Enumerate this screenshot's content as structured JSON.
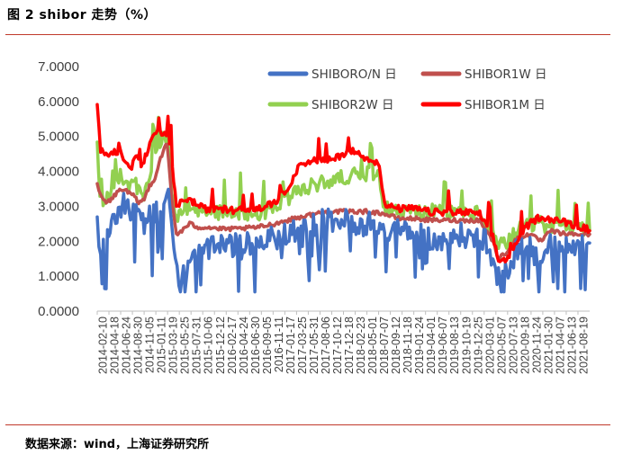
{
  "figure": {
    "title": "图 2 shibor 走势（%）",
    "source": "数据来源：wind，上海证券研究所"
  },
  "chart_data": {
    "type": "line",
    "title": "",
    "xlabel": "",
    "ylabel": "",
    "ylim": [
      0,
      7
    ],
    "yticks": [
      "0.0000",
      "1.0000",
      "2.0000",
      "3.0000",
      "4.0000",
      "5.0000",
      "6.0000",
      "7.0000"
    ],
    "grid": false,
    "legend_position": "top-right",
    "x_tick_labels": [
      "2014-02-10",
      "2014-04-18",
      "2014-06-24",
      "2014-08-30",
      "2014-11-05",
      "2015-01-11",
      "2015-03-19",
      "2015-05-25",
      "2015-07-31",
      "2015-10-06",
      "2015-12-12",
      "2016-02-17",
      "2016-04-24",
      "2016-06-30",
      "2016-09-05",
      "2016-11-11",
      "2017-01-17",
      "2017-03-25",
      "2017-05-31",
      "2017-08-06",
      "2017-10-12",
      "2017-12-18",
      "2018-02-23",
      "2018-05-01",
      "2018-07-07",
      "2018-09-12",
      "2018-11-18",
      "2019-01-24",
      "2019-04-01",
      "2019-06-07",
      "2019-08-13",
      "2019-10-19",
      "2019-12-25",
      "2020-03-01",
      "2020-05-07",
      "2020-07-13",
      "2020-09-18",
      "2020-11-24",
      "2021-01-30",
      "2021-04-07",
      "2021-06-13",
      "2021-08-19"
    ],
    "x_start": "2014-02-10",
    "x_end": "2021-09-10",
    "series": [
      {
        "name": "SHIBORO/N 日",
        "color": "#4472C4",
        "points": [
          [
            "2014-02-10",
            2.5
          ],
          [
            "2014-03-01",
            1.9
          ],
          [
            "2014-04-01",
            2.2
          ],
          [
            "2014-05-01",
            2.6
          ],
          [
            "2014-06-01",
            2.9
          ],
          [
            "2014-07-01",
            3.2
          ],
          [
            "2014-08-01",
            3.2
          ],
          [
            "2014-09-01",
            2.9
          ],
          [
            "2014-10-01",
            2.8
          ],
          [
            "2014-11-01",
            2.6
          ],
          [
            "2014-12-01",
            2.8
          ],
          [
            "2015-01-01",
            2.8
          ],
          [
            "2015-02-01",
            3.1
          ],
          [
            "2015-03-01",
            3.3
          ],
          [
            "2015-03-25",
            3.4
          ],
          [
            "2015-04-10",
            2.6
          ],
          [
            "2015-04-25",
            1.6
          ],
          [
            "2015-05-15",
            1.1
          ],
          [
            "2015-06-10",
            1.3
          ],
          [
            "2015-07-15",
            1.4
          ],
          [
            "2015-08-20",
            1.7
          ],
          [
            "2015-09-15",
            1.85
          ],
          [
            "2015-10-15",
            1.85
          ],
          [
            "2015-12-01",
            1.9
          ],
          [
            "2016-02-01",
            2.0
          ],
          [
            "2016-05-01",
            2.0
          ],
          [
            "2016-08-01",
            2.05
          ],
          [
            "2016-11-01",
            2.2
          ],
          [
            "2017-01-15",
            2.3
          ],
          [
            "2017-04-01",
            2.5
          ],
          [
            "2017-06-01",
            2.6
          ],
          [
            "2017-09-01",
            2.7
          ],
          [
            "2017-12-01",
            2.7
          ],
          [
            "2018-03-01",
            2.6
          ],
          [
            "2018-06-01",
            2.65
          ],
          [
            "2018-07-15",
            2.4
          ],
          [
            "2018-09-01",
            2.4
          ],
          [
            "2018-12-01",
            2.4
          ],
          [
            "2019-03-01",
            2.3
          ],
          [
            "2019-06-01",
            2.0
          ],
          [
            "2019-09-01",
            2.3
          ],
          [
            "2019-12-01",
            2.2
          ],
          [
            "2020-02-01",
            2.1
          ],
          [
            "2020-03-15",
            1.4
          ],
          [
            "2020-04-15",
            1.0
          ],
          [
            "2020-06-01",
            1.3
          ],
          [
            "2020-08-01",
            1.9
          ],
          [
            "2020-10-01",
            2.0
          ],
          [
            "2020-12-15",
            1.4
          ],
          [
            "2021-01-15",
            2.0
          ],
          [
            "2021-03-15",
            1.9
          ],
          [
            "2021-06-01",
            1.9
          ],
          [
            "2021-09-10",
            1.95
          ]
        ]
      },
      {
        "name": "SHIBOR1W 日",
        "color": "#C0504D",
        "points": [
          [
            "2014-02-10",
            3.6
          ],
          [
            "2014-03-01",
            3.3
          ],
          [
            "2014-04-01",
            3.1
          ],
          [
            "2014-05-01",
            3.2
          ],
          [
            "2014-06-01",
            3.4
          ],
          [
            "2014-07-01",
            3.5
          ],
          [
            "2014-08-01",
            3.4
          ],
          [
            "2014-09-01",
            3.3
          ],
          [
            "2014-10-01",
            3.1
          ],
          [
            "2014-11-01",
            3.2
          ],
          [
            "2014-12-01",
            3.6
          ],
          [
            "2015-01-01",
            3.8
          ],
          [
            "2015-02-01",
            4.4
          ],
          [
            "2015-03-10",
            4.8
          ],
          [
            "2015-04-05",
            3.2
          ],
          [
            "2015-05-01",
            2.2
          ],
          [
            "2015-06-01",
            2.3
          ],
          [
            "2015-07-15",
            2.5
          ],
          [
            "2015-09-01",
            2.4
          ],
          [
            "2015-11-01",
            2.4
          ],
          [
            "2016-01-01",
            2.35
          ],
          [
            "2016-04-01",
            2.35
          ],
          [
            "2016-08-01",
            2.4
          ],
          [
            "2016-11-01",
            2.5
          ],
          [
            "2017-01-15",
            2.6
          ],
          [
            "2017-04-01",
            2.7
          ],
          [
            "2017-07-01",
            2.8
          ],
          [
            "2017-10-01",
            2.85
          ],
          [
            "2018-01-01",
            2.85
          ],
          [
            "2018-04-01",
            2.85
          ],
          [
            "2018-07-01",
            2.8
          ],
          [
            "2018-10-01",
            2.65
          ],
          [
            "2019-01-01",
            2.65
          ],
          [
            "2019-04-01",
            2.6
          ],
          [
            "2019-07-01",
            2.6
          ],
          [
            "2019-10-01",
            2.6
          ],
          [
            "2020-01-01",
            2.6
          ],
          [
            "2020-03-15",
            2.0
          ],
          [
            "2020-04-15",
            1.5
          ],
          [
            "2020-06-01",
            1.7
          ],
          [
            "2020-08-01",
            2.1
          ],
          [
            "2020-10-01",
            2.2
          ],
          [
            "2020-12-15",
            2.0
          ],
          [
            "2021-02-01",
            2.3
          ],
          [
            "2021-05-01",
            2.2
          ],
          [
            "2021-09-10",
            2.2
          ]
        ]
      },
      {
        "name": "SHIBOR2W 日",
        "color": "#92D050",
        "points": [
          [
            "2014-02-10",
            4.6
          ],
          [
            "2014-02-25",
            3.2
          ],
          [
            "2014-03-15",
            3.0
          ],
          [
            "2014-04-15",
            3.4
          ],
          [
            "2014-05-15",
            3.3
          ],
          [
            "2014-06-20",
            3.9
          ],
          [
            "2014-07-15",
            3.7
          ],
          [
            "2014-08-15",
            3.5
          ],
          [
            "2014-09-15",
            3.6
          ],
          [
            "2014-10-15",
            3.2
          ],
          [
            "2014-11-15",
            3.4
          ],
          [
            "2014-12-20",
            4.3
          ],
          [
            "2015-01-20",
            4.6
          ],
          [
            "2015-02-15",
            4.9
          ],
          [
            "2015-03-10",
            5.0
          ],
          [
            "2015-04-05",
            3.4
          ],
          [
            "2015-05-01",
            2.6
          ],
          [
            "2015-06-15",
            2.9
          ],
          [
            "2015-08-01",
            2.8
          ],
          [
            "2015-10-01",
            2.75
          ],
          [
            "2016-01-01",
            2.8
          ],
          [
            "2016-04-01",
            2.8
          ],
          [
            "2016-08-01",
            2.75
          ],
          [
            "2016-11-01",
            2.9
          ],
          [
            "2017-01-15",
            3.2
          ],
          [
            "2017-04-01",
            3.4
          ],
          [
            "2017-07-01",
            3.6
          ],
          [
            "2017-10-01",
            3.7
          ],
          [
            "2018-01-01",
            3.85
          ],
          [
            "2018-04-01",
            3.9
          ],
          [
            "2018-06-15",
            3.9
          ],
          [
            "2018-07-15",
            2.9
          ],
          [
            "2018-10-01",
            2.8
          ],
          [
            "2019-01-01",
            2.8
          ],
          [
            "2019-04-01",
            2.8
          ],
          [
            "2019-07-01",
            2.8
          ],
          [
            "2019-10-01",
            2.8
          ],
          [
            "2020-01-01",
            2.75
          ],
          [
            "2020-03-15",
            2.1
          ],
          [
            "2020-04-15",
            1.8
          ],
          [
            "2020-06-15",
            2.0
          ],
          [
            "2020-08-15",
            2.3
          ],
          [
            "2020-10-15",
            2.4
          ],
          [
            "2020-12-15",
            2.5
          ],
          [
            "2021-01-20",
            2.3
          ],
          [
            "2021-03-01",
            2.5
          ],
          [
            "2021-05-01",
            2.4
          ],
          [
            "2021-09-10",
            2.3
          ]
        ]
      },
      {
        "name": "SHIBOR1M 日",
        "color": "#FF0000",
        "points": [
          [
            "2014-02-10",
            5.8
          ],
          [
            "2014-03-01",
            4.6
          ],
          [
            "2014-04-01",
            4.5
          ],
          [
            "2014-05-01",
            4.5
          ],
          [
            "2014-06-20",
            4.5
          ],
          [
            "2014-07-15",
            4.3
          ],
          [
            "2014-08-15",
            4.0
          ],
          [
            "2014-09-15",
            4.5
          ],
          [
            "2014-10-15",
            4.0
          ],
          [
            "2014-11-15",
            4.5
          ],
          [
            "2014-12-20",
            5.0
          ],
          [
            "2015-01-15",
            5.2
          ],
          [
            "2015-02-15",
            5.0
          ],
          [
            "2015-03-15",
            5.0
          ],
          [
            "2015-04-01",
            4.6
          ],
          [
            "2015-05-01",
            2.9
          ],
          [
            "2015-06-15",
            3.2
          ],
          [
            "2015-08-01",
            3.1
          ],
          [
            "2015-10-01",
            2.9
          ],
          [
            "2016-01-01",
            2.9
          ],
          [
            "2016-04-01",
            2.85
          ],
          [
            "2016-08-01",
            2.9
          ],
          [
            "2016-11-01",
            3.05
          ],
          [
            "2017-01-15",
            3.5
          ],
          [
            "2017-04-01",
            4.2
          ],
          [
            "2017-07-01",
            4.3
          ],
          [
            "2017-10-01",
            4.3
          ],
          [
            "2018-01-01",
            4.6
          ],
          [
            "2018-04-01",
            4.35
          ],
          [
            "2018-06-15",
            4.2
          ],
          [
            "2018-07-15",
            3.0
          ],
          [
            "2018-10-01",
            2.9
          ],
          [
            "2019-01-01",
            2.9
          ],
          [
            "2019-04-01",
            2.8
          ],
          [
            "2019-07-01",
            2.8
          ],
          [
            "2019-10-01",
            2.8
          ],
          [
            "2020-01-01",
            2.75
          ],
          [
            "2020-03-15",
            2.1
          ],
          [
            "2020-04-15",
            1.4
          ],
          [
            "2020-06-15",
            1.5
          ],
          [
            "2020-08-15",
            2.2
          ],
          [
            "2020-10-15",
            2.5
          ],
          [
            "2020-12-15",
            2.7
          ],
          [
            "2021-01-20",
            2.6
          ],
          [
            "2021-03-01",
            2.6
          ],
          [
            "2021-05-01",
            2.5
          ],
          [
            "2021-09-10",
            2.3
          ]
        ]
      }
    ]
  }
}
